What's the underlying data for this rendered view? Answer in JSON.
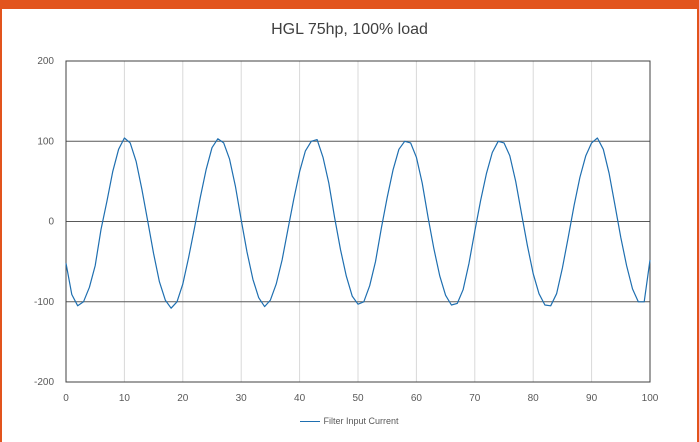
{
  "chart_data": {
    "type": "line",
    "title": "HGL 75hp, 100% load",
    "xlabel": "",
    "ylabel": "",
    "xlim": [
      0,
      100
    ],
    "ylim": [
      -200,
      200
    ],
    "x_ticks": [
      "0",
      "10",
      "20",
      "30",
      "40",
      "50",
      "60",
      "70",
      "80",
      "90",
      "100"
    ],
    "y_ticks": [
      "200",
      "100",
      "0",
      "-100",
      "-200"
    ],
    "grid": true,
    "legend_position": "bottom",
    "series": [
      {
        "name": "Filter Input Current",
        "color": "#1f6fb0",
        "x": [
          0,
          1,
          2,
          3,
          4,
          5,
          6,
          7,
          8,
          9,
          10,
          11,
          12,
          13,
          14,
          15,
          16,
          17,
          18,
          19,
          20,
          21,
          22,
          23,
          24,
          25,
          26,
          27,
          28,
          29,
          30,
          31,
          32,
          33,
          34,
          35,
          36,
          37,
          38,
          39,
          40,
          41,
          42,
          43,
          44,
          45,
          46,
          47,
          48,
          49,
          50,
          51,
          52,
          53,
          54,
          55,
          56,
          57,
          58,
          59,
          60,
          61,
          62,
          63,
          64,
          65,
          66,
          67,
          68,
          69,
          70,
          71,
          72,
          73,
          74,
          75,
          76,
          77,
          78,
          79,
          80,
          81,
          82,
          83,
          84,
          85,
          86,
          87,
          88,
          89,
          90,
          91,
          92,
          93,
          94,
          95,
          96,
          97,
          98,
          99,
          100
        ],
        "y": [
          -52,
          -91,
          -105,
          -100,
          -82,
          -55,
          -10,
          25,
          62,
          90,
          104,
          98,
          75,
          40,
          0,
          -40,
          -75,
          -98,
          -108,
          -100,
          -78,
          -45,
          -8,
          30,
          65,
          92,
          103,
          98,
          78,
          44,
          2,
          -38,
          -72,
          -95,
          -106,
          -98,
          -78,
          -48,
          -10,
          28,
          62,
          88,
          100,
          102,
          80,
          48,
          5,
          -35,
          -68,
          -93,
          -103,
          -100,
          -80,
          -50,
          -8,
          30,
          64,
          90,
          100,
          98,
          80,
          48,
          5,
          -34,
          -68,
          -92,
          -104,
          -102,
          -85,
          -52,
          -12,
          26,
          60,
          86,
          100,
          98,
          82,
          50,
          10,
          -30,
          -65,
          -90,
          -104,
          -105,
          -90,
          -58,
          -20,
          20,
          55,
          82,
          98,
          104,
          90,
          60,
          20,
          -20,
          -55,
          -84,
          -100,
          -100,
          -48
        ]
      }
    ]
  }
}
